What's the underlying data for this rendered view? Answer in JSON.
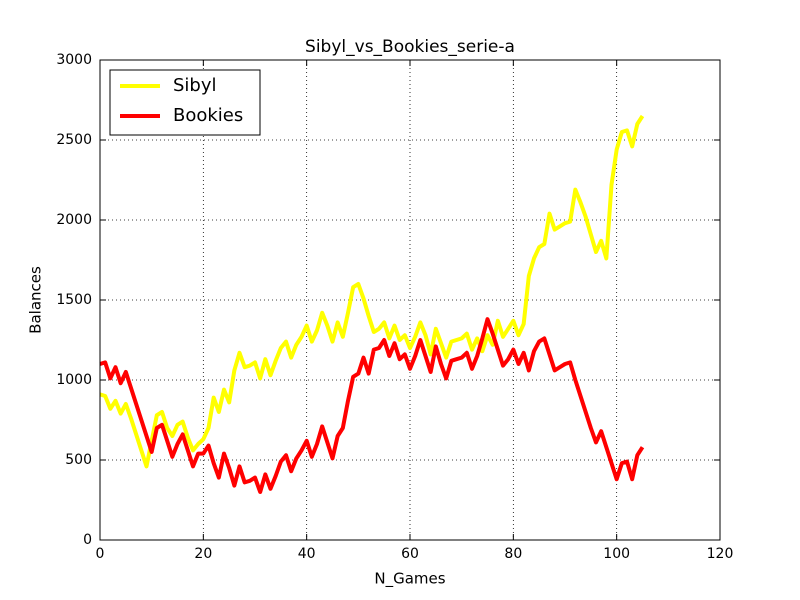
{
  "chart_data": {
    "type": "line",
    "title": "Sibyl_vs_Bookies_serie-a",
    "x_label": "N_Games",
    "y_label": "Balances",
    "x": [
      0,
      1,
      2,
      3,
      4,
      5,
      6,
      7,
      8,
      9,
      10,
      11,
      12,
      13,
      14,
      15,
      16,
      17,
      18,
      19,
      20,
      21,
      22,
      23,
      24,
      25,
      26,
      27,
      28,
      29,
      30,
      31,
      32,
      33,
      34,
      35,
      36,
      37,
      38,
      39,
      40,
      41,
      42,
      43,
      44,
      45,
      46,
      47,
      48,
      49,
      50,
      51,
      52,
      53,
      54,
      55,
      56,
      57,
      58,
      59,
      60,
      61,
      62,
      63,
      64,
      65,
      66,
      67,
      68,
      69,
      70,
      71,
      72,
      73,
      74,
      75,
      76,
      77,
      78,
      79,
      80,
      81,
      82,
      83,
      84,
      85,
      86,
      87,
      88,
      89,
      90,
      91,
      92,
      93,
      94,
      95,
      96,
      97,
      98,
      99,
      100,
      101,
      102,
      103,
      104,
      105
    ],
    "series": [
      {
        "name": "Sibyl",
        "color": "#ffff00",
        "values": [
          910,
          900,
          820,
          870,
          790,
          850,
          760,
          660,
          560,
          460,
          620,
          780,
          800,
          700,
          650,
          720,
          740,
          640,
          560,
          600,
          630,
          700,
          890,
          800,
          940,
          860,
          1060,
          1170,
          1080,
          1090,
          1110,
          1010,
          1130,
          1030,
          1120,
          1200,
          1240,
          1140,
          1220,
          1270,
          1340,
          1240,
          1310,
          1420,
          1340,
          1240,
          1360,
          1270,
          1420,
          1580,
          1600,
          1510,
          1400,
          1300,
          1320,
          1360,
          1260,
          1340,
          1250,
          1280,
          1200,
          1270,
          1360,
          1280,
          1160,
          1320,
          1230,
          1140,
          1240,
          1250,
          1260,
          1290,
          1190,
          1260,
          1180,
          1280,
          1220,
          1370,
          1270,
          1320,
          1370,
          1280,
          1350,
          1650,
          1760,
          1830,
          1850,
          2040,
          1940,
          1960,
          1980,
          1990,
          2190,
          2110,
          2020,
          1910,
          1800,
          1870,
          1760,
          2220,
          2440,
          2550,
          2560,
          2460,
          2600,
          2650
        ]
      },
      {
        "name": "Bookies",
        "color": "#ff0000",
        "values": [
          1100,
          1110,
          1010,
          1080,
          980,
          1050,
          950,
          850,
          750,
          650,
          550,
          700,
          720,
          620,
          520,
          600,
          660,
          560,
          460,
          540,
          540,
          590,
          480,
          390,
          540,
          450,
          340,
          460,
          360,
          370,
          390,
          300,
          410,
          320,
          400,
          490,
          530,
          430,
          510,
          560,
          620,
          520,
          600,
          710,
          610,
          510,
          650,
          700,
          870,
          1020,
          1040,
          1140,
          1040,
          1190,
          1200,
          1250,
          1150,
          1230,
          1130,
          1160,
          1070,
          1150,
          1250,
          1150,
          1050,
          1210,
          1100,
          1010,
          1120,
          1130,
          1140,
          1170,
          1070,
          1150,
          1260,
          1380,
          1290,
          1190,
          1090,
          1130,
          1190,
          1100,
          1170,
          1060,
          1180,
          1240,
          1260,
          1160,
          1060,
          1080,
          1100,
          1110,
          1000,
          900,
          800,
          700,
          610,
          680,
          580,
          480,
          380,
          480,
          490,
          380,
          530,
          580
        ]
      }
    ],
    "xlim": [
      0,
      120
    ],
    "xticks": [
      0,
      20,
      40,
      60,
      80,
      100,
      120
    ],
    "ylim": [
      0,
      3000
    ],
    "yticks": [
      0,
      500,
      1000,
      1500,
      2000,
      2500,
      3000
    ],
    "grid": true,
    "legend": "upper left"
  }
}
